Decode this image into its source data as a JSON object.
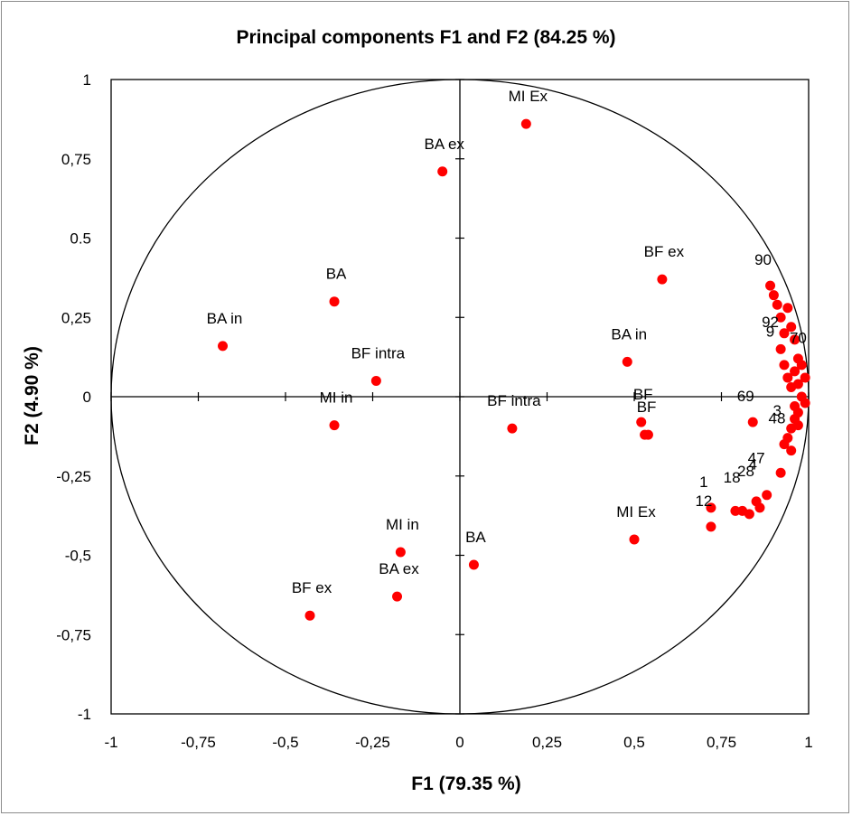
{
  "chart_data": {
    "type": "scatter",
    "title": "Principal components F1 and F2 (84.25 %)",
    "xlabel": "F1 (79.35 %)",
    "ylabel": "F2 (4.90 %)",
    "xlim": [
      -1,
      1
    ],
    "ylim": [
      -1,
      1
    ],
    "x_ticks": [
      "-1",
      "-0,75",
      "-0,5",
      "-0,25",
      "0",
      "0,25",
      "0,5",
      "0,75",
      "1"
    ],
    "y_ticks": [
      "1",
      "0,75",
      "0.5",
      "0,25",
      "0",
      "-0,25",
      "-0,5",
      "-0,75",
      "-1"
    ],
    "correlation_circle": true,
    "grid": false,
    "marker_color": "#ff0000",
    "labeled_points": [
      {
        "label": "MI Ex",
        "x": 0.19,
        "y": 0.86
      },
      {
        "label": "BA ex",
        "x": -0.05,
        "y": 0.71
      },
      {
        "label": "BF ex",
        "x": 0.58,
        "y": 0.37
      },
      {
        "label": "BA",
        "x": -0.36,
        "y": 0.3
      },
      {
        "label": "BA in",
        "x": -0.68,
        "y": 0.16
      },
      {
        "label": "BF intra",
        "x": -0.24,
        "y": 0.05
      },
      {
        "label": "BA in",
        "x": 0.48,
        "y": 0.11
      },
      {
        "label": "MI in",
        "x": -0.36,
        "y": -0.09
      },
      {
        "label": "BF intra",
        "x": 0.15,
        "y": -0.1
      },
      {
        "label": "BF",
        "x": 0.52,
        "y": -0.08
      },
      {
        "label": "BF",
        "x": 0.53,
        "y": -0.12
      },
      {
        "label": "MI Ex",
        "x": 0.5,
        "y": -0.45
      },
      {
        "label": "BA",
        "x": 0.04,
        "y": -0.53
      },
      {
        "label": "MI in",
        "x": -0.17,
        "y": -0.49
      },
      {
        "label": "BA ex",
        "x": -0.18,
        "y": -0.63
      },
      {
        "label": "BF ex",
        "x": -0.43,
        "y": -0.69
      }
    ],
    "numbered_points": [
      {
        "label": "90",
        "x": 0.89,
        "y": 0.35
      },
      {
        "label": "69",
        "x": 0.84,
        "y": -0.08
      },
      {
        "label": "48",
        "x": 0.93,
        "y": -0.15
      },
      {
        "label": "1",
        "x": 0.72,
        "y": -0.35
      },
      {
        "label": "12",
        "x": 0.72,
        "y": -0.41
      }
    ],
    "unlabeled_points": [
      {
        "x": 0.54,
        "y": -0.12
      },
      {
        "x": 0.92,
        "y": 0.15
      },
      {
        "x": 0.92,
        "y": 0.25
      },
      {
        "x": 0.94,
        "y": 0.28
      },
      {
        "x": 0.93,
        "y": 0.2
      },
      {
        "x": 0.95,
        "y": 0.22
      },
      {
        "x": 0.96,
        "y": 0.18
      },
      {
        "x": 0.97,
        "y": 0.12
      },
      {
        "x": 0.96,
        "y": 0.08
      },
      {
        "x": 0.98,
        "y": 0.1
      },
      {
        "x": 0.97,
        "y": 0.04
      },
      {
        "x": 0.99,
        "y": 0.06
      },
      {
        "x": 0.98,
        "y": 0.0
      },
      {
        "x": 0.99,
        "y": -0.02
      },
      {
        "x": 0.97,
        "y": -0.05
      },
      {
        "x": 0.96,
        "y": -0.07
      },
      {
        "x": 0.95,
        "y": -0.1
      },
      {
        "x": 0.94,
        "y": -0.13
      },
      {
        "x": 0.95,
        "y": -0.17
      },
      {
        "x": 0.97,
        "y": -0.09
      },
      {
        "x": 0.92,
        "y": -0.24
      },
      {
        "x": 0.88,
        "y": -0.31
      },
      {
        "x": 0.85,
        "y": -0.33
      },
      {
        "x": 0.86,
        "y": -0.35
      },
      {
        "x": 0.83,
        "y": -0.37
      },
      {
        "x": 0.81,
        "y": -0.36
      },
      {
        "x": 0.79,
        "y": -0.36
      },
      {
        "x": 0.9,
        "y": 0.32
      },
      {
        "x": 0.91,
        "y": 0.29
      },
      {
        "x": 0.95,
        "y": 0.03
      },
      {
        "x": 0.96,
        "y": -0.03
      },
      {
        "x": 0.93,
        "y": 0.1
      },
      {
        "x": 0.94,
        "y": 0.06
      }
    ],
    "cluster_text": [
      {
        "label": "92",
        "x": 0.89,
        "y": 0.22
      },
      {
        "label": "9",
        "x": 0.89,
        "y": 0.19
      },
      {
        "label": "70",
        "x": 0.97,
        "y": 0.17
      },
      {
        "label": "3",
        "x": 0.91,
        "y": -0.06
      },
      {
        "label": "47",
        "x": 0.85,
        "y": -0.21
      },
      {
        "label": "4",
        "x": 0.84,
        "y": -0.23
      },
      {
        "label": "28",
        "x": 0.82,
        "y": -0.25
      },
      {
        "label": "18",
        "x": 0.78,
        "y": -0.27
      }
    ]
  }
}
